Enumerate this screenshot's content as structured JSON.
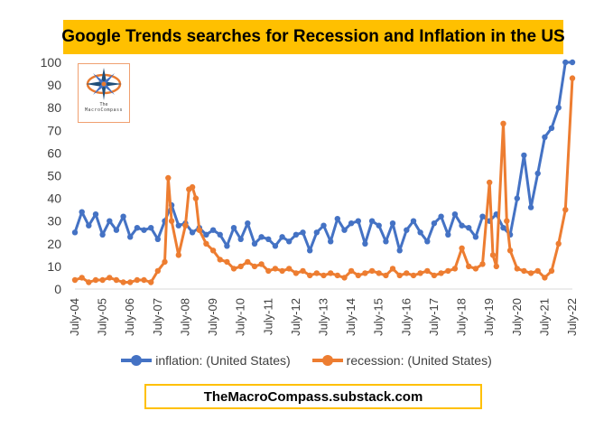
{
  "title": "Google Trends searches for Recession and Inflation in the US",
  "footer": "TheMacroCompass.substack.com",
  "logo": {
    "icon": "compass-rose-icon",
    "line1": "The",
    "line2": "MacroCompass"
  },
  "chart_data": {
    "type": "line",
    "title": "Google Trends searches for Recession and Inflation in the US",
    "xlabel": "",
    "ylabel": "",
    "ylim": [
      0,
      100
    ],
    "yticks": [
      0,
      10,
      20,
      30,
      40,
      50,
      60,
      70,
      80,
      90,
      100
    ],
    "xlim": [
      2004.5,
      2022.5
    ],
    "xtick_labels": [
      "July-04",
      "July-05",
      "July-06",
      "July-07",
      "July-08",
      "July-09",
      "July-10",
      "July-11",
      "July-12",
      "July-13",
      "July-14",
      "July-15",
      "July-16",
      "July-17",
      "July-18",
      "July-19",
      "July-20",
      "July-21",
      "July-22"
    ],
    "grid": false,
    "legend_position": "bottom",
    "series": [
      {
        "name": "inflation: (United States)",
        "color": "#4472c4",
        "x": [
          2004.5,
          2004.75,
          2005.0,
          2005.25,
          2005.5,
          2005.75,
          2006.0,
          2006.25,
          2006.5,
          2006.75,
          2007.0,
          2007.25,
          2007.5,
          2007.75,
          2008.0,
          2008.25,
          2008.5,
          2008.75,
          2009.0,
          2009.25,
          2009.5,
          2009.75,
          2010.0,
          2010.25,
          2010.5,
          2010.75,
          2011.0,
          2011.25,
          2011.5,
          2011.75,
          2012.0,
          2012.25,
          2012.5,
          2012.75,
          2013.0,
          2013.25,
          2013.5,
          2013.75,
          2014.0,
          2014.25,
          2014.5,
          2014.75,
          2015.0,
          2015.25,
          2015.5,
          2015.75,
          2016.0,
          2016.25,
          2016.5,
          2016.75,
          2017.0,
          2017.25,
          2017.5,
          2017.75,
          2018.0,
          2018.25,
          2018.5,
          2018.75,
          2019.0,
          2019.25,
          2019.5,
          2019.75,
          2020.0,
          2020.25,
          2020.5,
          2020.75,
          2021.0,
          2021.25,
          2021.5,
          2021.75,
          2022.0,
          2022.25,
          2022.5
        ],
        "values": [
          25,
          34,
          28,
          33,
          24,
          30,
          26,
          32,
          23,
          27,
          26,
          27,
          22,
          30,
          37,
          28,
          29,
          25,
          27,
          24,
          26,
          24,
          19,
          27,
          22,
          29,
          20,
          23,
          22,
          19,
          23,
          21,
          24,
          25,
          17,
          25,
          28,
          21,
          31,
          26,
          29,
          30,
          20,
          30,
          28,
          21,
          29,
          17,
          26,
          30,
          25,
          21,
          29,
          32,
          24,
          33,
          28,
          27,
          23,
          32,
          30,
          33,
          27,
          24,
          40,
          59,
          36,
          51,
          67,
          71,
          80,
          100,
          100
        ]
      },
      {
        "name": "recession: (United States)",
        "color": "#ed7d31",
        "x": [
          2004.5,
          2004.75,
          2005.0,
          2005.25,
          2005.5,
          2005.75,
          2006.0,
          2006.25,
          2006.5,
          2006.75,
          2007.0,
          2007.25,
          2007.5,
          2007.75,
          2007.875,
          2008.0,
          2008.25,
          2008.5,
          2008.625,
          2008.75,
          2008.875,
          2009.0,
          2009.25,
          2009.5,
          2009.75,
          2010.0,
          2010.25,
          2010.5,
          2010.75,
          2011.0,
          2011.25,
          2011.5,
          2011.75,
          2012.0,
          2012.25,
          2012.5,
          2012.75,
          2013.0,
          2013.25,
          2013.5,
          2013.75,
          2014.0,
          2014.25,
          2014.5,
          2014.75,
          2015.0,
          2015.25,
          2015.5,
          2015.75,
          2016.0,
          2016.25,
          2016.5,
          2016.75,
          2017.0,
          2017.25,
          2017.5,
          2017.75,
          2018.0,
          2018.25,
          2018.5,
          2018.75,
          2019.0,
          2019.25,
          2019.5,
          2019.625,
          2019.75,
          2020.0,
          2020.125,
          2020.25,
          2020.5,
          2020.75,
          2021.0,
          2021.25,
          2021.5,
          2021.75,
          2022.0,
          2022.25,
          2022.5
        ],
        "values": [
          4,
          5,
          3,
          4,
          4,
          5,
          4,
          3,
          3,
          4,
          4,
          3,
          8,
          12,
          49,
          30,
          15,
          28,
          44,
          45,
          40,
          26,
          20,
          17,
          13,
          12,
          9,
          10,
          12,
          10,
          11,
          8,
          9,
          8,
          9,
          7,
          8,
          6,
          7,
          6,
          7,
          6,
          5,
          8,
          6,
          7,
          8,
          7,
          6,
          9,
          6,
          7,
          6,
          7,
          8,
          6,
          7,
          8,
          9,
          18,
          10,
          9,
          11,
          47,
          15,
          10,
          73,
          30,
          17,
          9,
          8,
          7,
          8,
          5,
          8,
          20,
          35,
          93
        ]
      }
    ]
  }
}
